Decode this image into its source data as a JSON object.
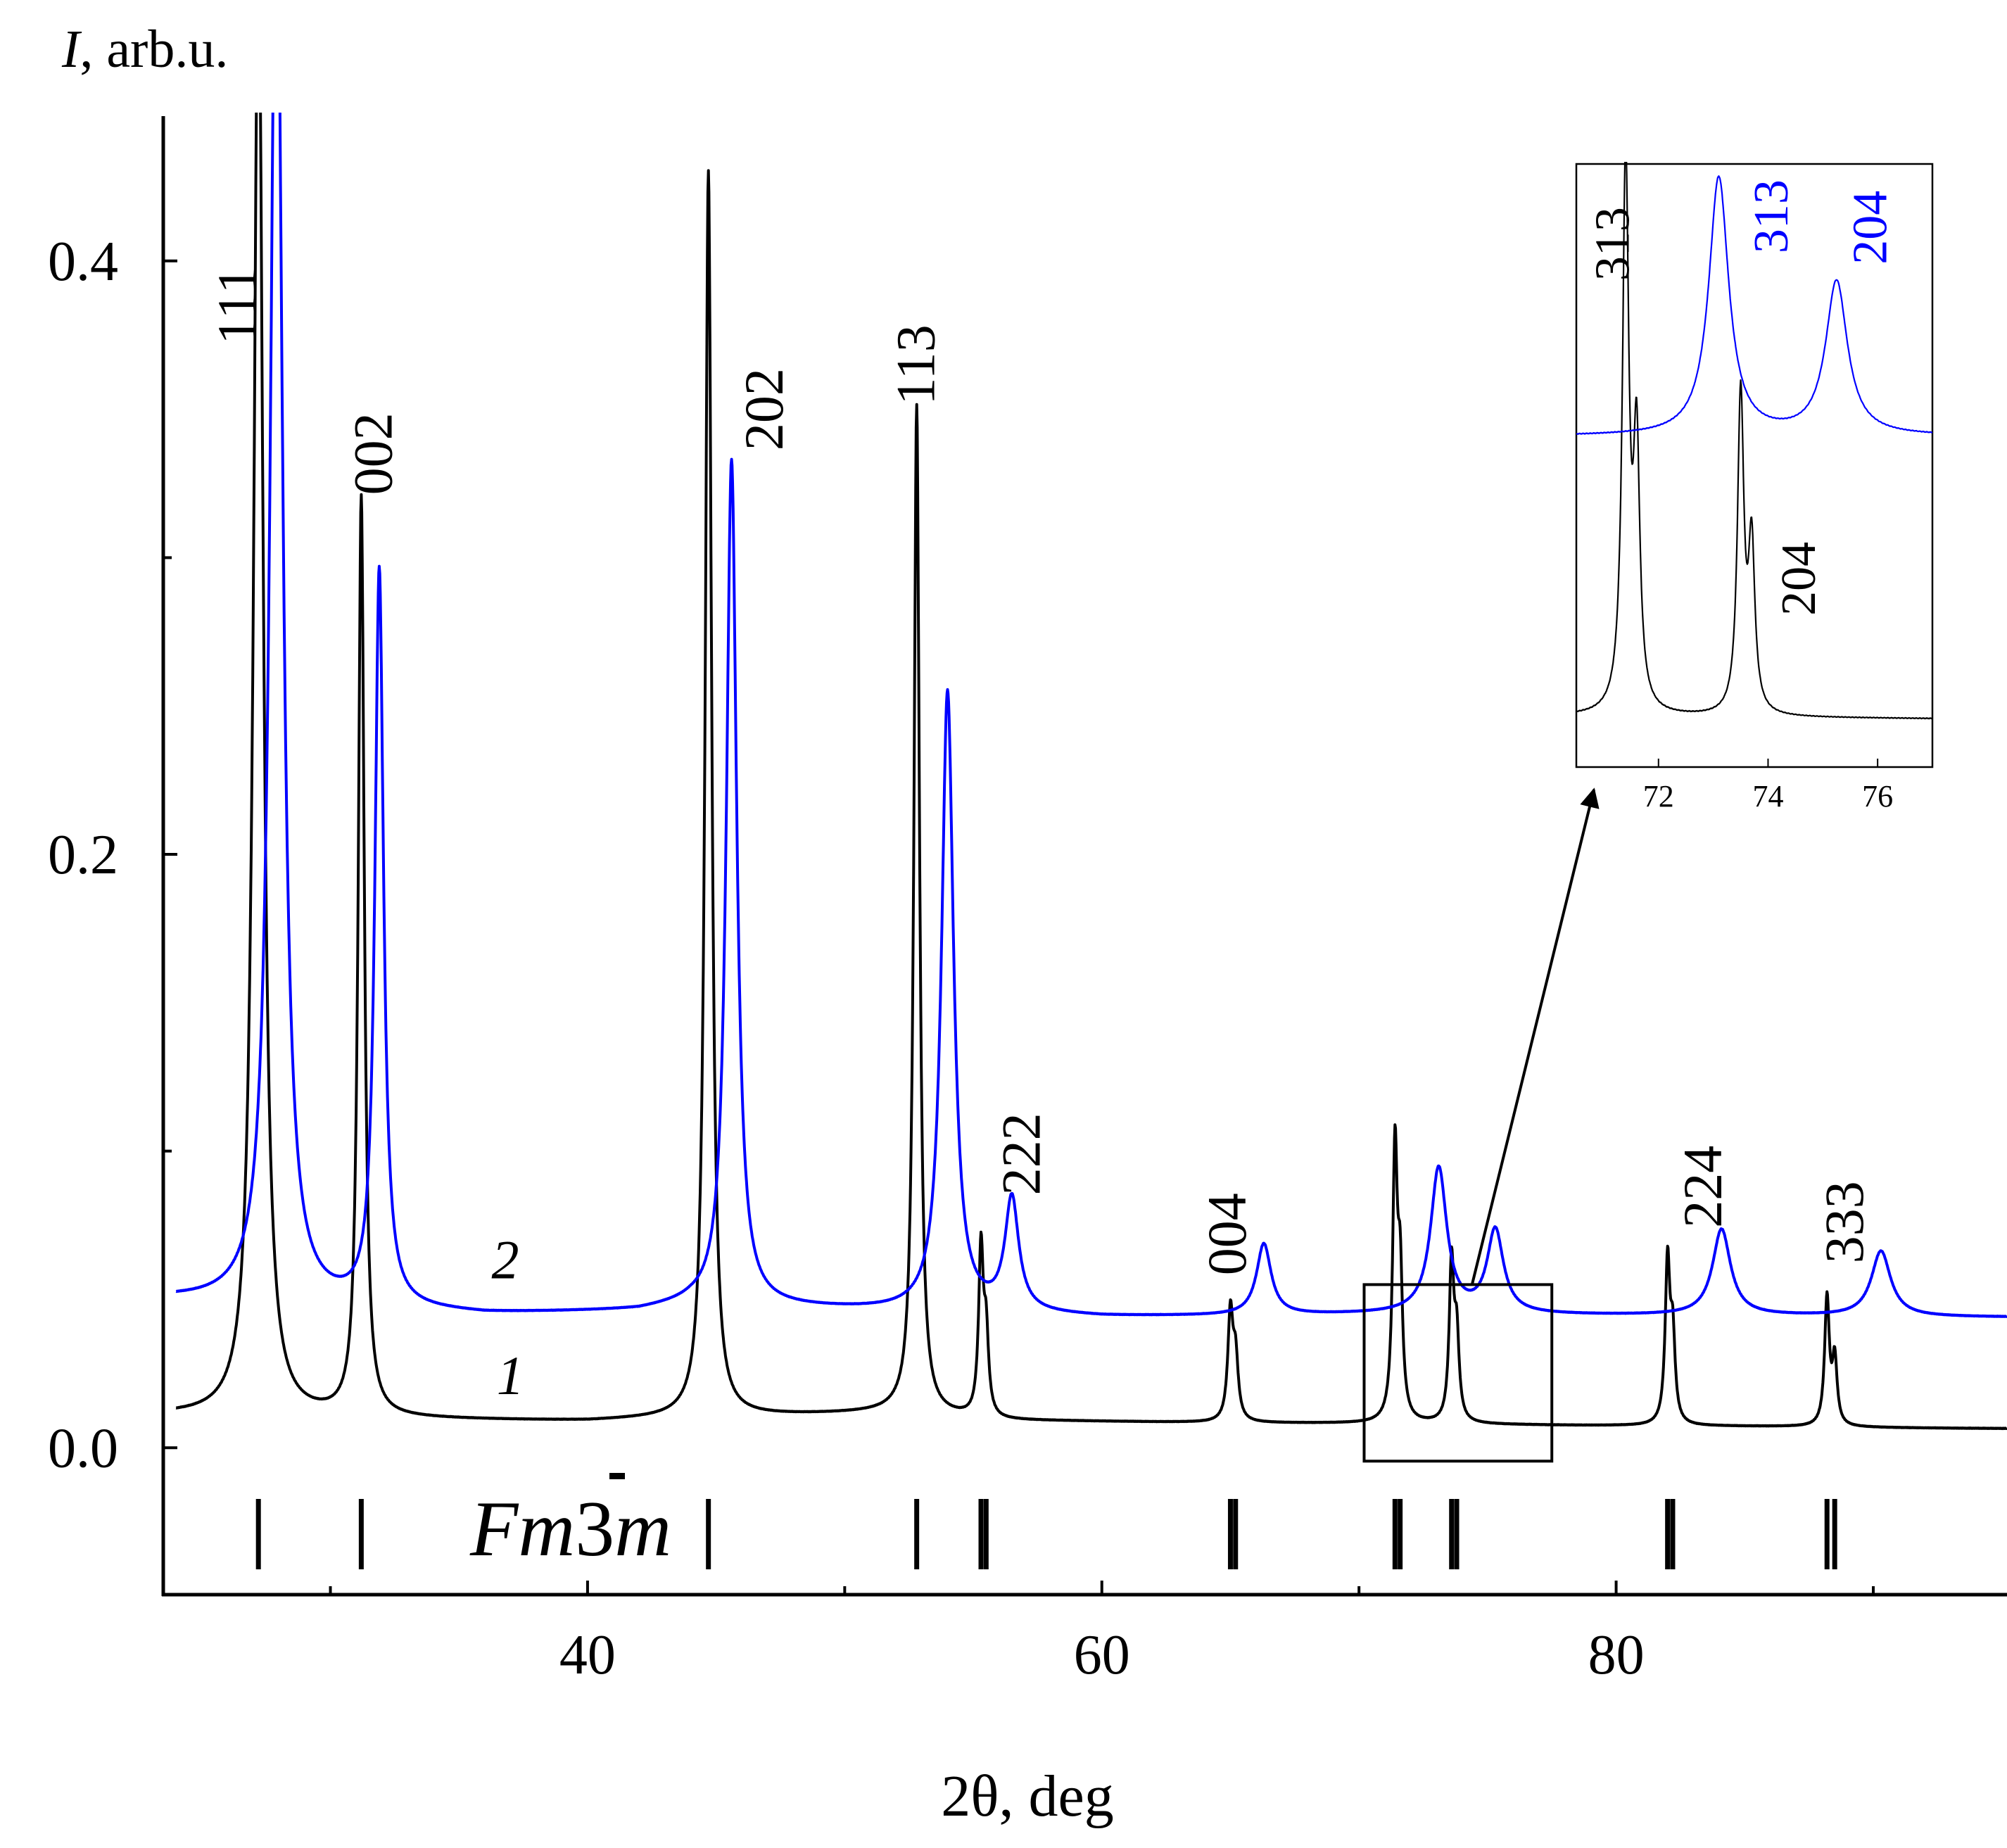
{
  "chart_data": {
    "type": "line",
    "ylabel_symbol": "I",
    "ylabel_rest": ", arb.u.",
    "xlabel": "2θ, deg",
    "xlim": [
      23.5,
      95.2
    ],
    "ylim": [
      -0.0495,
      0.45
    ],
    "xticks": [
      {
        "value": 40,
        "label": "40"
      },
      {
        "value": 60,
        "label": "60"
      },
      {
        "value": 80,
        "label": "80"
      }
    ],
    "xminor": [
      30,
      50,
      70,
      90
    ],
    "yticks": [
      {
        "value": 0.0,
        "label": "0.0"
      },
      {
        "value": 0.2,
        "label": "0.2"
      },
      {
        "value": 0.4,
        "label": "0.4"
      }
    ],
    "yminor": [
      0.1,
      0.3
    ],
    "series": [
      {
        "name": "1",
        "color": "#000000",
        "baseline": [
          [
            24,
            0.011
          ],
          [
            28,
            0.01
          ],
          [
            40,
            0.009
          ],
          [
            52,
            0.012
          ],
          [
            56,
            0.009
          ],
          [
            95.2,
            0.0065
          ]
        ],
        "peaks": [
          {
            "x": 27.2,
            "h": 0.5,
            "w": 0.22
          },
          {
            "x": 31.2,
            "h": 0.31,
            "w": 0.14
          },
          {
            "x": 44.7,
            "h": 0.42,
            "w": 0.15
          },
          {
            "x": 52.8,
            "h": 0.34,
            "w": 0.13
          },
          {
            "x": 55.3,
            "h": 0.056,
            "w": 0.11
          },
          {
            "x": 55.5,
            "h": 0.026,
            "w": 0.11
          },
          {
            "x": 65.0,
            "h": 0.036,
            "w": 0.12
          },
          {
            "x": 65.2,
            "h": 0.02,
            "w": 0.12
          },
          {
            "x": 71.4,
            "h": 0.09,
            "w": 0.11
          },
          {
            "x": 71.6,
            "h": 0.045,
            "w": 0.11
          },
          {
            "x": 73.6,
            "h": 0.053,
            "w": 0.11
          },
          {
            "x": 73.8,
            "h": 0.027,
            "w": 0.11
          },
          {
            "x": 82.0,
            "h": 0.054,
            "w": 0.11
          },
          {
            "x": 82.2,
            "h": 0.028,
            "w": 0.11
          },
          {
            "x": 88.2,
            "h": 0.043,
            "w": 0.11
          },
          {
            "x": 88.5,
            "h": 0.022,
            "w": 0.11
          }
        ]
      },
      {
        "name": "2",
        "color": "#0000ff",
        "baseline": [
          [
            24,
            0.05
          ],
          [
            28,
            0.048
          ],
          [
            36,
            0.045
          ],
          [
            42,
            0.046
          ],
          [
            44,
            0.048
          ],
          [
            48,
            0.047
          ],
          [
            60,
            0.044
          ],
          [
            72,
            0.045
          ],
          [
            95.2,
            0.044
          ]
        ],
        "peaks": [
          {
            "x": 27.9,
            "h": 0.5,
            "w": 0.28
          },
          {
            "x": 31.9,
            "h": 0.248,
            "w": 0.2
          },
          {
            "x": 45.6,
            "h": 0.285,
            "w": 0.24
          },
          {
            "x": 54.0,
            "h": 0.209,
            "w": 0.28
          },
          {
            "x": 56.5,
            "h": 0.038,
            "w": 0.32
          },
          {
            "x": 66.3,
            "h": 0.024,
            "w": 0.34
          },
          {
            "x": 73.1,
            "h": 0.049,
            "w": 0.38
          },
          {
            "x": 75.3,
            "h": 0.028,
            "w": 0.38
          },
          {
            "x": 84.1,
            "h": 0.029,
            "w": 0.42
          },
          {
            "x": 90.3,
            "h": 0.022,
            "w": 0.45
          }
        ]
      }
    ],
    "curve_labels": [
      {
        "text": "1",
        "x": 37.0,
        "y": 0.024,
        "color": "#000000"
      },
      {
        "text": "2",
        "x": 36.8,
        "y": 0.063,
        "color": "#000000"
      }
    ],
    "peak_labels": [
      {
        "text": "111",
        "x": 26.4,
        "y": 0.385
      },
      {
        "text": "002",
        "x": 31.7,
        "y": 0.335
      },
      {
        "text": "202",
        "x": 46.9,
        "y": 0.35
      },
      {
        "text": "113",
        "x": 52.8,
        "y": 0.365
      },
      {
        "text": "222",
        "x": 56.9,
        "y": 0.099
      },
      {
        "text": "004",
        "x": 64.9,
        "y": 0.072
      },
      {
        "text": "224",
        "x": 83.4,
        "y": 0.088
      },
      {
        "text": "333",
        "x": 88.9,
        "y": 0.076
      }
    ],
    "reference_phase": "Fm3̄m",
    "reference_label_parts": [
      "Fm",
      "3",
      "m"
    ],
    "reference_ticks": [
      27.2,
      31.2,
      44.7,
      52.8,
      55.3,
      55.5,
      65.0,
      65.2,
      71.4,
      71.6,
      73.6,
      73.8,
      82.0,
      82.2,
      88.2,
      88.5
    ],
    "inset": {
      "xlim": [
        70.5,
        77.0
      ],
      "xticks": [
        {
          "value": 72,
          "label": "72"
        },
        {
          "value": 74,
          "label": "74"
        },
        {
          "value": 76,
          "label": "76"
        }
      ],
      "selection_box": {
        "x": [
          70.2,
          77.5
        ],
        "y": [
          -0.0045,
          0.055
        ]
      },
      "series": [
        {
          "name": "1",
          "color": "#000000",
          "baseline": [
            [
              70.5,
              0.02
            ],
            [
              77.0,
              0.015
            ]
          ],
          "peaks": [
            {
              "x": 71.4,
              "h": 1.0,
              "w": 0.07
            },
            {
              "x": 71.6,
              "h": 0.47,
              "w": 0.07
            },
            {
              "x": 73.5,
              "h": 0.58,
              "w": 0.07
            },
            {
              "x": 73.7,
              "h": 0.3,
              "w": 0.07
            }
          ]
        },
        {
          "name": "2",
          "color": "#0000ff",
          "baseline": [
            [
              70.5,
              0.53
            ],
            [
              77.0,
              0.53
            ]
          ],
          "peaks": [
            {
              "x": 73.1,
              "h": 0.47,
              "w": 0.22
            },
            {
              "x": 75.25,
              "h": 0.28,
              "w": 0.24
            }
          ]
        }
      ],
      "labels": [
        {
          "text": "313",
          "x": 71.2,
          "y": 0.88,
          "color": "#000000"
        },
        {
          "text": "313",
          "x": 74.1,
          "y": 0.93,
          "color": "#0000ff"
        },
        {
          "text": "204",
          "x": 75.9,
          "y": 0.91,
          "color": "#0000ff"
        },
        {
          "text": "204",
          "x": 74.6,
          "y": 0.27,
          "color": "#000000"
        }
      ]
    }
  }
}
